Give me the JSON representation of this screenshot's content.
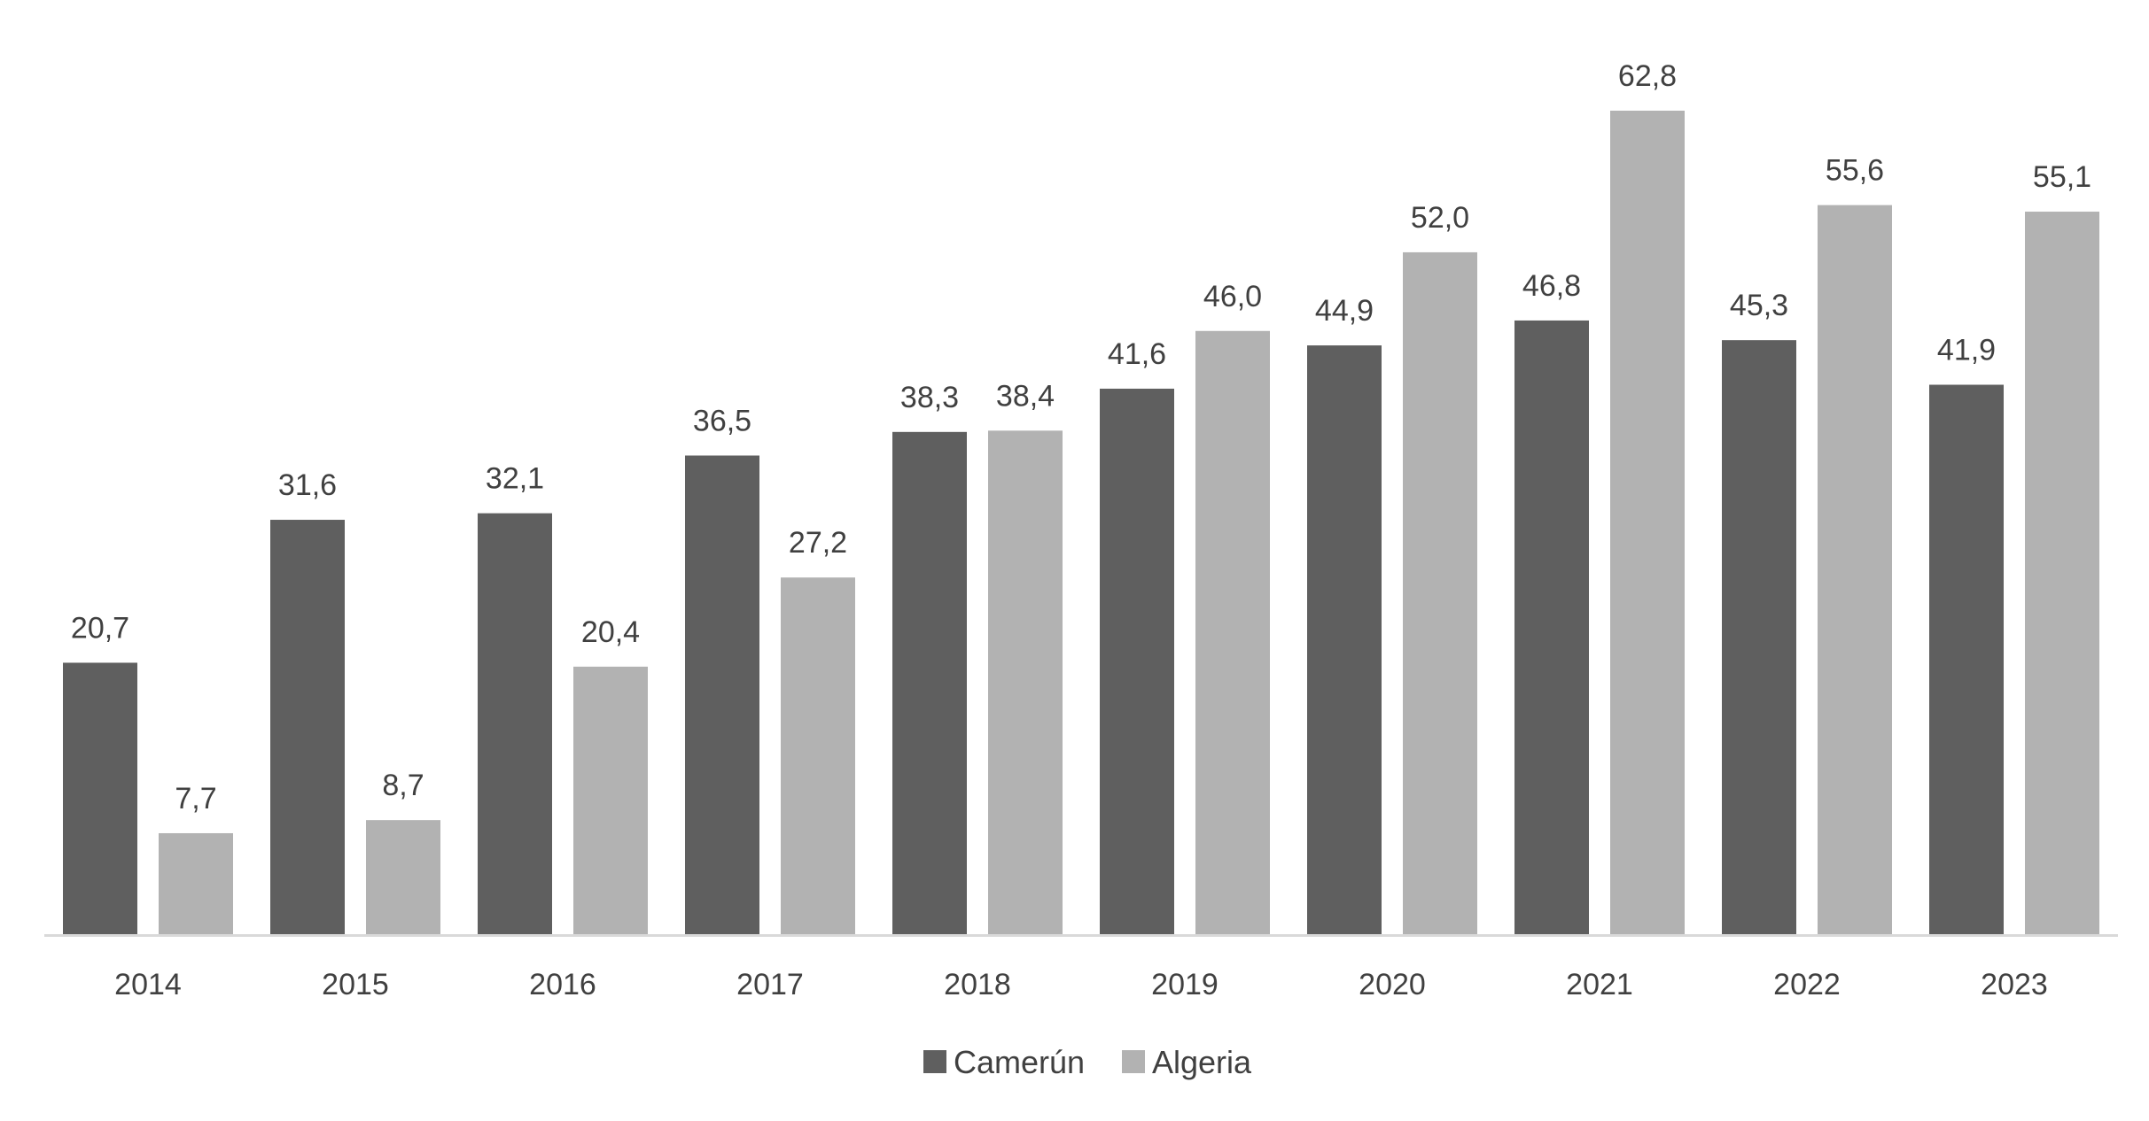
{
  "chart_data": {
    "type": "bar",
    "title": "",
    "xlabel": "",
    "ylabel": "",
    "ylim": [
      0,
      70
    ],
    "grid": false,
    "legend": "bottom",
    "categories": [
      "2014",
      "2015",
      "2016",
      "2017",
      "2018",
      "2019",
      "2020",
      "2021",
      "2022",
      "2023"
    ],
    "series": [
      {
        "name": "Camerún",
        "color": "#5f5f5f",
        "values": [
          20.7,
          31.6,
          32.1,
          36.5,
          38.3,
          41.6,
          44.9,
          46.8,
          45.3,
          41.9
        ],
        "labels": [
          "20,7",
          "31,6",
          "32,1",
          "36,5",
          "38,3",
          "41,6",
          "44,9",
          "46,8",
          "45,3",
          "41,9"
        ]
      },
      {
        "name": "Algeria",
        "color": "#b2b2b2",
        "values": [
          7.7,
          8.7,
          20.4,
          27.2,
          38.4,
          46.0,
          52.0,
          62.8,
          55.6,
          55.1
        ],
        "labels": [
          "7,7",
          "8,7",
          "20,4",
          "27,2",
          "38,4",
          "46,0",
          "52,0",
          "62,8",
          "55,6",
          "55,1"
        ]
      }
    ]
  }
}
